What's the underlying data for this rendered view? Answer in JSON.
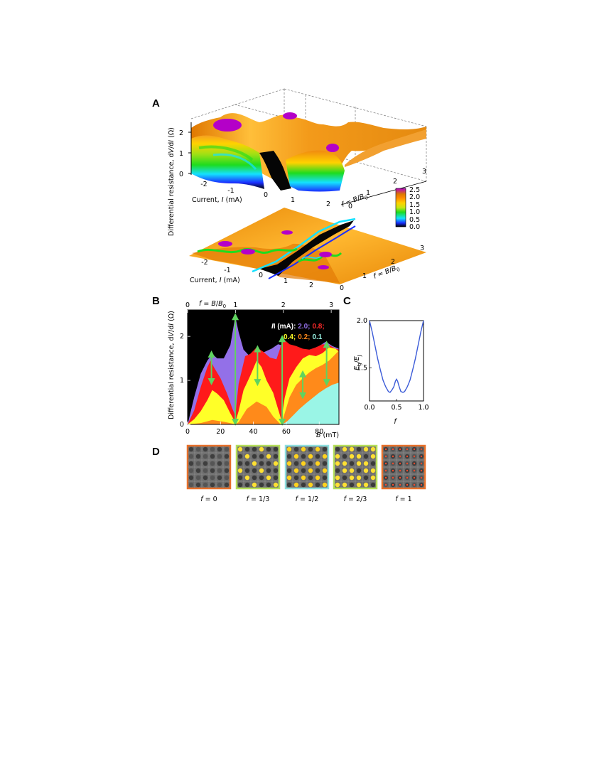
{
  "figure": {
    "panel_labels": {
      "a": "A",
      "b": "B",
      "c": "C",
      "d": "D"
    },
    "colors": {
      "colorscale": [
        "#000000",
        "#1a2eff",
        "#14e1ff",
        "#1edc1e",
        "#c8e614",
        "#ffd200",
        "#ff8c00",
        "#dc7800",
        "#b400c8"
      ],
      "purple_fill": "#9370e8",
      "red_fill": "#ff1a1a",
      "yellow_fill": "#ffff28",
      "orange_fill": "#ff8a1a",
      "cyan_fill": "#9af5e6",
      "arrow": "#5fd35f",
      "curve_c": "#3b5bd8"
    }
  },
  "panel_a": {
    "z_label": "Differential resistance, dV/dI (Ω)",
    "z_label_parts": {
      "pre": "Differential resistance, d",
      "v": "V",
      "mid": "/d",
      "i": "I",
      "post": " (Ω)"
    },
    "z_ticks": [
      "0",
      "1",
      "2"
    ],
    "x_label": {
      "pre": "Current, ",
      "var": "I",
      "post": " (mA)"
    },
    "x_ticks_upper": [
      "-2",
      "-1",
      "0",
      "1",
      "2"
    ],
    "x_ticks_lower": [
      "-2",
      "-1",
      "0",
      "1",
      "2"
    ],
    "f_label": {
      "f": "f",
      "eq": " = ",
      "b": "B",
      "slash": "/",
      "b0": "B",
      "sub": "0"
    },
    "f_ticks_upper": [
      "0",
      "1",
      "2",
      "3"
    ],
    "f_ticks_lower": [
      "0",
      "1",
      "2",
      "3"
    ],
    "colorbar_ticks": [
      "2.5",
      "2.0",
      "1.5",
      "1.0",
      "0.5",
      "0.0"
    ]
  },
  "panel_c": {
    "y_label": {
      "e": "E",
      "g": "g",
      "slash": "/",
      "e2": "E",
      "j": "J"
    },
    "x_label": "f",
    "y_ticks": [
      "2.0",
      "1.5"
    ],
    "x_ticks": [
      "0.0",
      "0.5",
      "1.0"
    ]
  },
  "panel_d": {
    "captions": [
      "f = 0",
      "f = 1/3",
      "f = 1/2",
      "f = 2/3",
      "f = 1"
    ]
  },
  "chart_data": {
    "type": "area",
    "title": "",
    "xlabel": "B (mT)",
    "xlabel_parts": {
      "var": "B",
      "unit": " (mT)"
    },
    "ylabel": "Differential resistance, dV/dI (Ω)",
    "top_axis_label": "f = B/B0",
    "x_ticks": [
      "0",
      "20",
      "40",
      "60",
      "80"
    ],
    "y_ticks": [
      "0",
      "1",
      "2"
    ],
    "top_ticks": [
      "0",
      "1",
      "2",
      "3"
    ],
    "xlim": [
      0,
      92
    ],
    "ylim": [
      0,
      2.6
    ],
    "legend": {
      "label": "I (mA): ",
      "entries": [
        "2.0;",
        "0.8;",
        "0.4;",
        "0.2;",
        "0.1"
      ]
    },
    "series": [
      {
        "name": "2.0",
        "x": [
          0,
          4,
          8,
          12,
          15,
          18,
          22,
          26,
          29,
          31,
          34,
          37,
          40,
          43,
          47,
          51,
          55,
          57,
          60,
          64,
          68,
          72,
          76,
          80,
          84,
          88,
          92
        ],
        "values": [
          0.0,
          0.62,
          1.15,
          1.45,
          1.6,
          1.5,
          1.5,
          1.8,
          2.45,
          2.1,
          1.7,
          1.58,
          1.55,
          1.6,
          1.65,
          1.72,
          1.82,
          1.8,
          1.7,
          1.65,
          1.68,
          1.66,
          1.72,
          1.78,
          1.88,
          1.78,
          1.72
        ]
      },
      {
        "name": "0.8",
        "x": [
          0,
          4,
          8,
          12,
          14,
          16,
          20,
          24,
          27,
          29,
          31,
          35,
          38,
          42,
          46,
          50,
          54,
          56,
          58,
          62,
          66,
          70,
          74,
          78,
          82,
          86,
          90,
          92
        ],
        "values": [
          0.0,
          0.32,
          0.85,
          1.3,
          1.45,
          1.3,
          1.05,
          0.7,
          0.38,
          0.2,
          0.92,
          1.55,
          1.6,
          1.75,
          1.65,
          1.52,
          1.48,
          1.7,
          1.95,
          1.82,
          1.78,
          1.72,
          1.7,
          1.75,
          1.82,
          1.8,
          1.72,
          1.7
        ]
      },
      {
        "name": "0.4",
        "x": [
          0,
          4,
          8,
          12,
          15,
          18,
          22,
          26,
          29,
          31,
          34,
          38,
          42,
          45,
          48,
          52,
          55,
          57,
          59,
          62,
          66,
          70,
          74,
          78,
          82,
          86,
          90,
          92
        ],
        "values": [
          0.0,
          0.12,
          0.3,
          0.55,
          0.78,
          0.7,
          0.55,
          0.25,
          0.05,
          0.3,
          0.78,
          1.1,
          1.45,
          1.3,
          1.0,
          0.72,
          0.35,
          0.1,
          0.6,
          1.05,
          1.3,
          1.5,
          1.58,
          1.55,
          1.62,
          1.75,
          1.72,
          1.65
        ]
      },
      {
        "name": "0.2",
        "x": [
          0,
          8,
          15,
          22,
          27,
          29,
          31,
          36,
          42,
          48,
          52,
          56,
          57,
          59,
          62,
          66,
          70,
          74,
          78,
          82,
          86,
          90,
          92
        ],
        "values": [
          0.0,
          0.03,
          0.1,
          0.06,
          0.02,
          0.0,
          0.05,
          0.35,
          0.52,
          0.4,
          0.18,
          0.02,
          0.0,
          0.25,
          0.62,
          0.9,
          1.05,
          1.18,
          1.28,
          1.35,
          1.45,
          1.6,
          1.68
        ]
      },
      {
        "name": "0.1",
        "x": [
          0,
          20,
          40,
          55,
          57,
          60,
          64,
          68,
          72,
          76,
          80,
          84,
          88,
          92
        ],
        "values": [
          0.0,
          0.0,
          0.0,
          0.0,
          0.0,
          0.05,
          0.2,
          0.35,
          0.48,
          0.6,
          0.72,
          0.82,
          0.9,
          0.95
        ]
      }
    ],
    "arrows": [
      {
        "x": 14.5,
        "y0": 0.97,
        "y1": 1.6
      },
      {
        "x": 29,
        "y0": 0.05,
        "y1": 2.45
      },
      {
        "x": 42.5,
        "y0": 0.95,
        "y1": 1.72
      },
      {
        "x": 57.5,
        "y0": 0.05,
        "y1": 1.95
      },
      {
        "x": 70,
        "y0": 0.65,
        "y1": 1.15
      },
      {
        "x": 84.5,
        "y0": 0.95,
        "y1": 1.82
      }
    ]
  },
  "curve_c": {
    "x": [
      0,
      0.05,
      0.1,
      0.15,
      0.2,
      0.25,
      0.3,
      0.35,
      0.38,
      0.42,
      0.45,
      0.48,
      0.5,
      0.52,
      0.55,
      0.58,
      0.62,
      0.65,
      0.7,
      0.75,
      0.8,
      0.85,
      0.9,
      0.95,
      1.0
    ],
    "y": [
      2.0,
      1.88,
      1.74,
      1.6,
      1.48,
      1.37,
      1.3,
      1.25,
      1.24,
      1.27,
      1.3,
      1.36,
      1.38,
      1.36,
      1.3,
      1.25,
      1.24,
      1.25,
      1.3,
      1.37,
      1.48,
      1.6,
      1.74,
      1.88,
      2.0
    ],
    "xlim": [
      0,
      1
    ],
    "ylim": [
      1.15,
      2.0
    ]
  }
}
